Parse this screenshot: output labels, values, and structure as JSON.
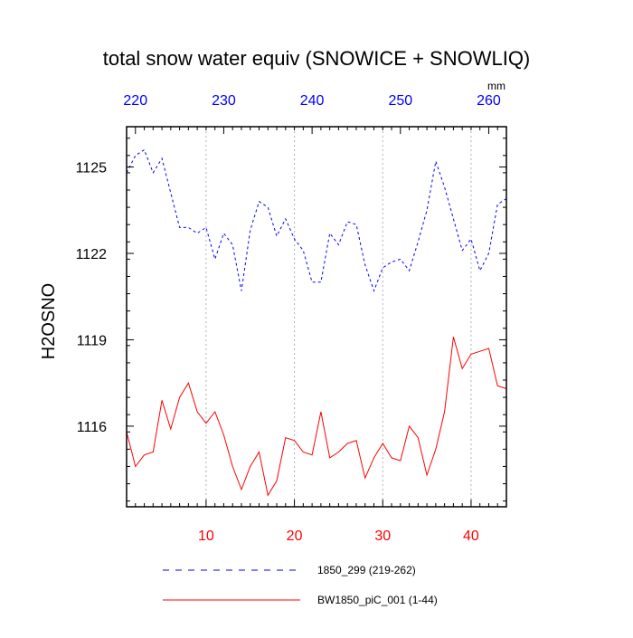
{
  "chart_data": {
    "type": "line",
    "title": "total snow water equiv (SNOWICE + SNOWLIQ)",
    "ylabel": "H2OSNO",
    "top_axis_unit": "mm",
    "ylim": [
      1113.2,
      1126.4
    ],
    "yticks": [
      1116,
      1119,
      1122,
      1125
    ],
    "bottom_axis": {
      "xlim": [
        1,
        44
      ],
      "ticks": [
        10,
        20,
        30,
        40
      ],
      "color": "#ff0000"
    },
    "top_axis": {
      "xlim": [
        219,
        262
      ],
      "ticks": [
        220,
        230,
        240,
        250,
        260
      ],
      "color": "#0000ff"
    },
    "grid": "vertical dotted at bottom-axis ticks",
    "legend_position": "bottom",
    "series": [
      {
        "name": "1850_299 (219-262)",
        "axis": "top",
        "color": "#0000ff",
        "style": "dashed",
        "x": [
          219,
          220,
          221,
          222,
          223,
          224,
          225,
          226,
          227,
          228,
          229,
          230,
          231,
          232,
          233,
          234,
          235,
          236,
          237,
          238,
          239,
          240,
          241,
          242,
          243,
          244,
          245,
          246,
          247,
          248,
          249,
          250,
          251,
          252,
          253,
          254,
          255,
          256,
          257,
          258,
          259,
          260,
          261,
          262
        ],
        "values": [
          1124.8,
          1125.4,
          1125.6,
          1124.8,
          1125.3,
          1124.1,
          1122.9,
          1122.9,
          1122.7,
          1122.9,
          1121.8,
          1122.7,
          1122.3,
          1120.7,
          1122.8,
          1123.8,
          1123.6,
          1122.6,
          1123.2,
          1122.5,
          1122.1,
          1121.0,
          1121.0,
          1122.7,
          1122.3,
          1123.1,
          1123.0,
          1121.6,
          1120.7,
          1121.5,
          1121.7,
          1121.8,
          1121.4,
          1122.4,
          1123.5,
          1125.2,
          1124.3,
          1123.2,
          1122.1,
          1122.5,
          1121.4,
          1122.0,
          1123.7,
          1123.9
        ]
      },
      {
        "name": "BW1850_piC_001 (1-44)",
        "axis": "bottom",
        "color": "#ff0000",
        "style": "solid",
        "x": [
          1,
          2,
          3,
          4,
          5,
          6,
          7,
          8,
          9,
          10,
          11,
          12,
          13,
          14,
          15,
          16,
          17,
          18,
          19,
          20,
          21,
          22,
          23,
          24,
          25,
          26,
          27,
          28,
          29,
          30,
          31,
          32,
          33,
          34,
          35,
          36,
          37,
          38,
          39,
          40,
          41,
          42,
          43,
          44
        ],
        "values": [
          1115.8,
          1114.6,
          1115.0,
          1115.1,
          1116.9,
          1115.9,
          1117.0,
          1117.5,
          1116.5,
          1116.1,
          1116.5,
          1115.7,
          1114.6,
          1113.8,
          1114.6,
          1115.1,
          1113.6,
          1114.1,
          1115.6,
          1115.5,
          1115.1,
          1115.0,
          1116.5,
          1114.9,
          1115.1,
          1115.4,
          1115.5,
          1114.2,
          1114.9,
          1115.4,
          1114.9,
          1114.8,
          1116.0,
          1115.6,
          1114.3,
          1115.2,
          1116.5,
          1119.1,
          1118.0,
          1118.5,
          1118.6,
          1118.7,
          1117.4,
          1117.3
        ]
      }
    ]
  }
}
